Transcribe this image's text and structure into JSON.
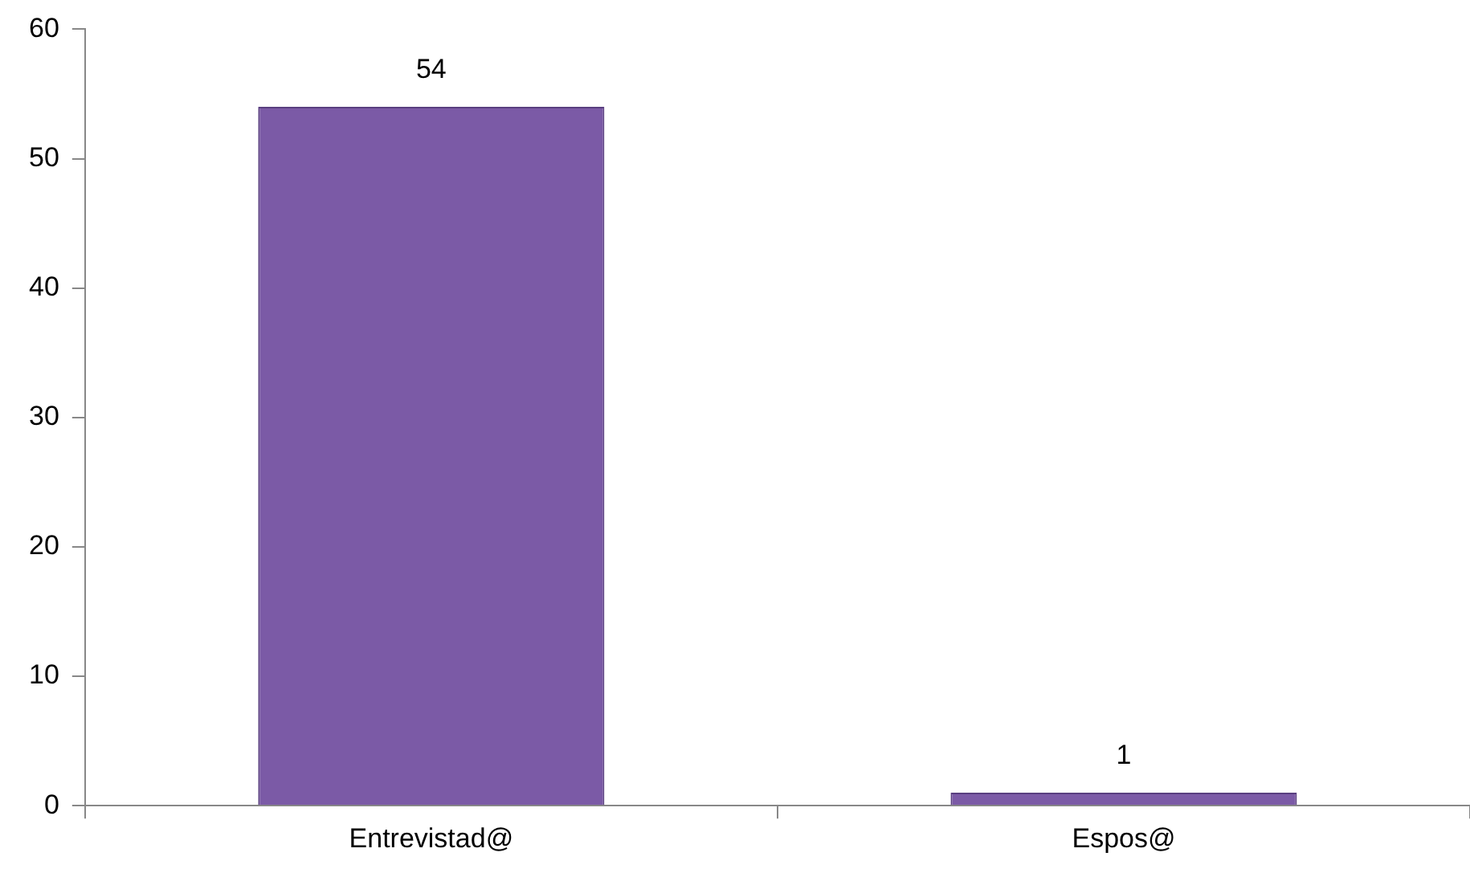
{
  "chart_data": {
    "type": "bar",
    "categories": [
      "Entrevistad@",
      "Espos@"
    ],
    "values": [
      54,
      1
    ],
    "color": "#7b5aa6",
    "ylim": [
      0,
      60
    ],
    "yticks": [
      0,
      10,
      20,
      30,
      40,
      50,
      60
    ],
    "grid": false,
    "legend": false,
    "data_labels": true
  }
}
